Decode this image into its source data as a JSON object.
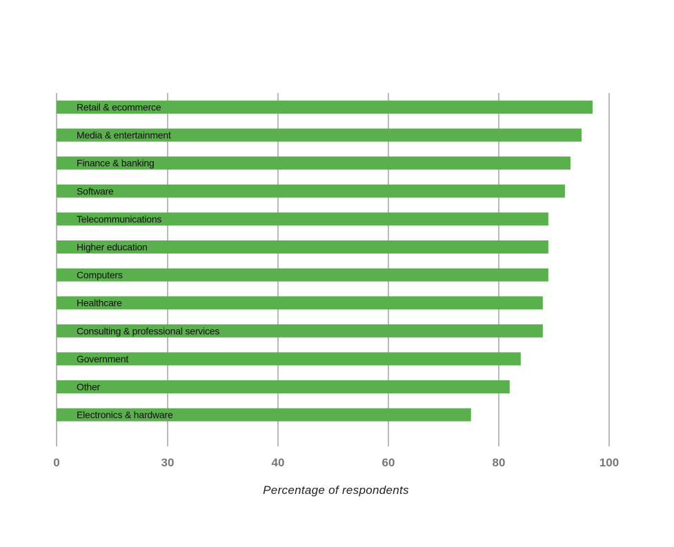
{
  "chart_data": {
    "type": "bar",
    "orientation": "horizontal",
    "categories": [
      "Retail & ecommerce",
      "Media & entertainment",
      "Finance & banking",
      "Software",
      "Telecommunications",
      "Higher education",
      "Computers",
      "Healthcare",
      "Consulting & professional services",
      "Government",
      "Other",
      "Electronics & hardware"
    ],
    "values": [
      97,
      95,
      93,
      92,
      89,
      89,
      89,
      88,
      88,
      84,
      82,
      75
    ],
    "xlabel": "Percentage of respondents",
    "ylabel": "",
    "x_ticks": [
      0,
      30,
      40,
      60,
      80,
      100
    ],
    "xlim": [
      0,
      100
    ],
    "grid": true,
    "legend": "none",
    "bar_color": "#5ab04c"
  }
}
